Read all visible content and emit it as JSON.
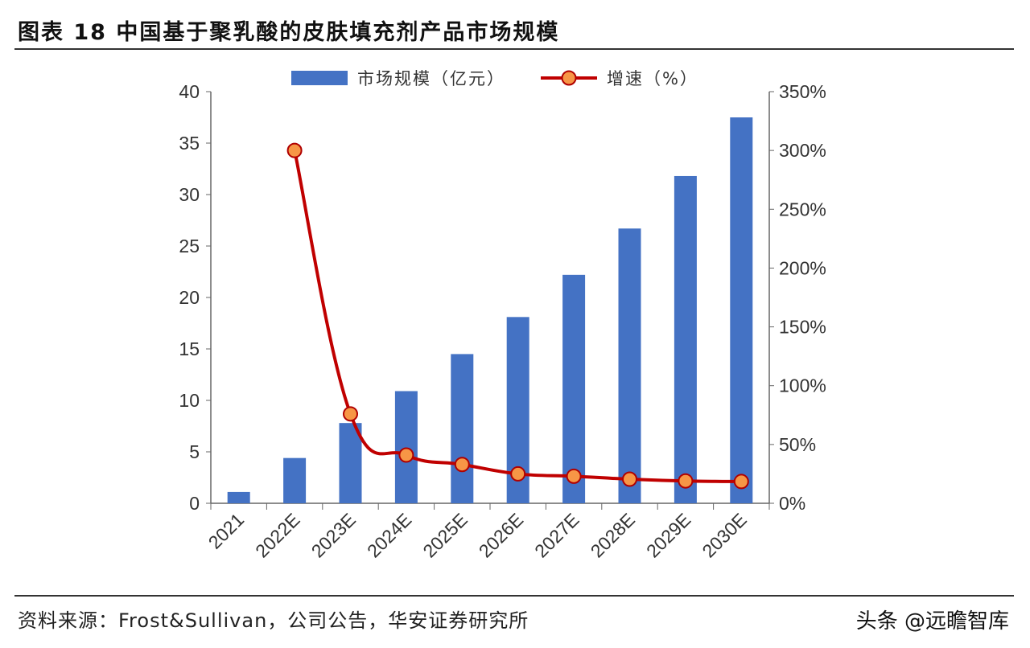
{
  "title": "图表 18 中国基于聚乳酸的皮肤填充剂产品市场规模",
  "source": "资料来源：Frost&Sullivan，公司公告，华安证券研究所",
  "watermark": "头条 @远瞻智库",
  "chart_data": {
    "type": "bar+line",
    "categories": [
      "2021",
      "2022E",
      "2023E",
      "2024E",
      "2025E",
      "2026E",
      "2027E",
      "2028E",
      "2029E",
      "2030E"
    ],
    "series": [
      {
        "name": "市场规模（亿元）",
        "type": "bar",
        "axis": "left",
        "color": "#4472C4",
        "values": [
          1.1,
          4.4,
          7.8,
          10.9,
          14.5,
          18.1,
          22.2,
          26.7,
          31.8,
          37.5
        ]
      },
      {
        "name": "增速（%）",
        "type": "line",
        "axis": "right",
        "color": "#C00000",
        "marker_color": "#F79646",
        "values": [
          null,
          300,
          76,
          41,
          33,
          25,
          23,
          20.5,
          19,
          18.5
        ]
      }
    ],
    "left_axis": {
      "range": [
        0,
        40
      ],
      "ticks": [
        "0",
        "5",
        "10",
        "15",
        "20",
        "25",
        "30",
        "35",
        "40"
      ]
    },
    "right_axis": {
      "range": [
        0,
        350
      ],
      "ticks": [
        "0%",
        "50%",
        "100%",
        "150%",
        "200%",
        "250%",
        "300%",
        "350%"
      ]
    },
    "legend_position": "top",
    "grid": false
  }
}
